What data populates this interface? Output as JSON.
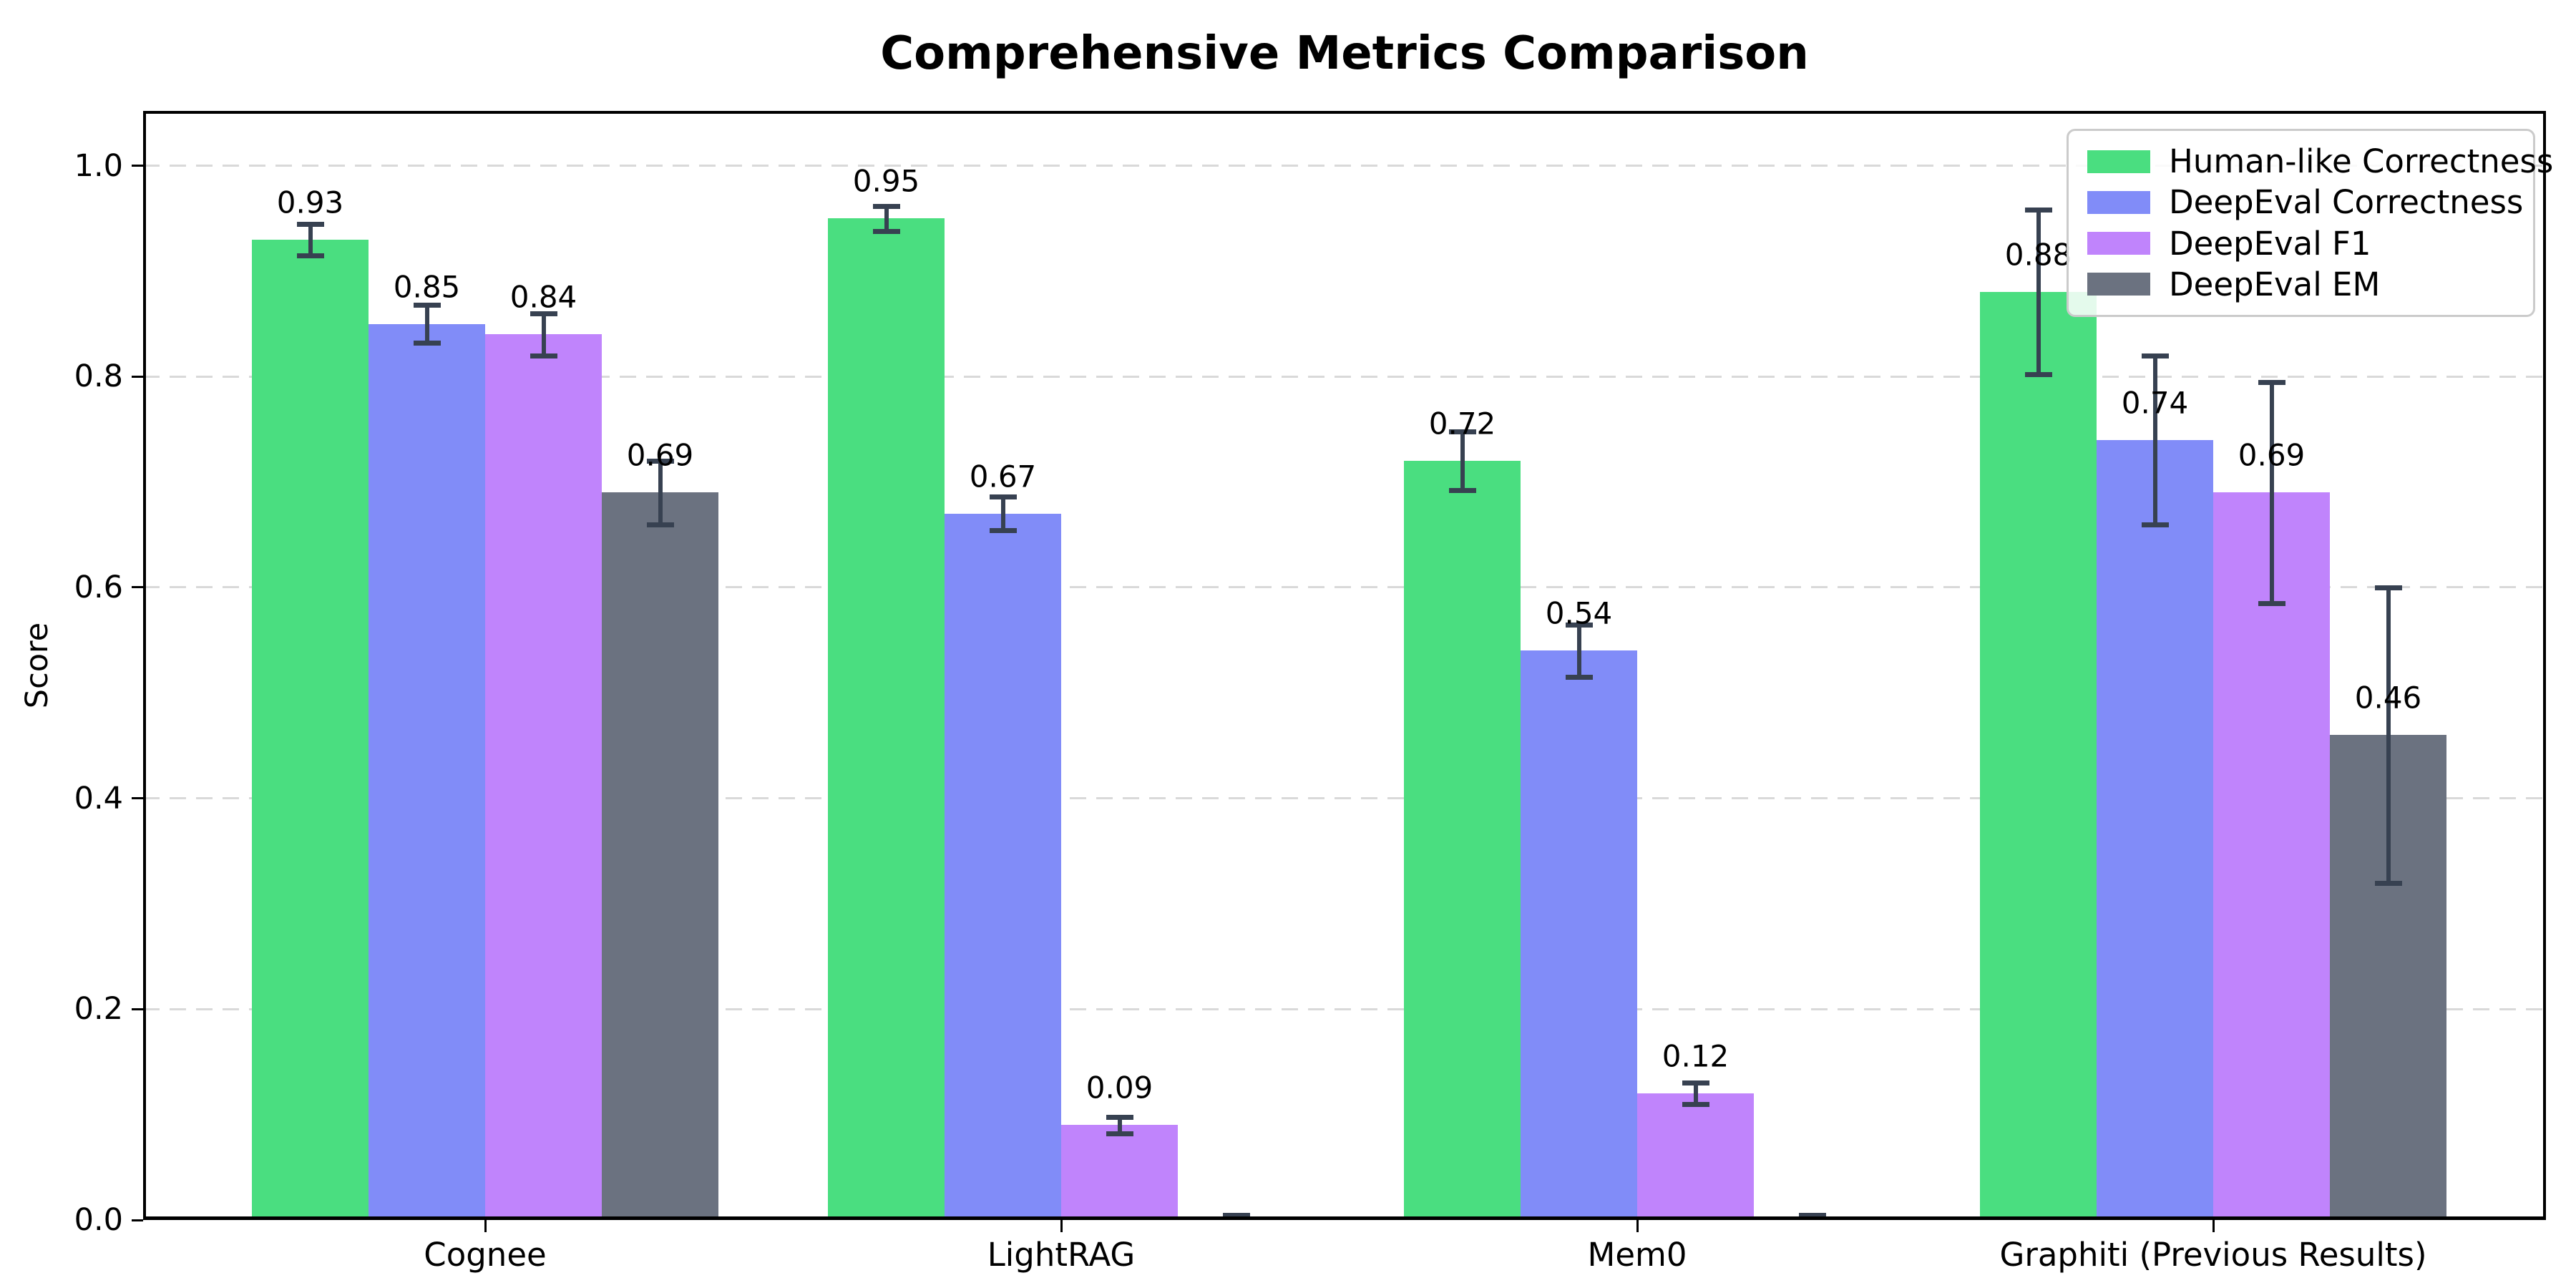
{
  "chart_data": {
    "type": "bar",
    "title": "Comprehensive Metrics Comparison",
    "xlabel": "",
    "ylabel": "Score",
    "categories": [
      "Cognee",
      "LightRAG",
      "Mem0",
      "Graphiti (Previous Results)"
    ],
    "series": [
      {
        "name": "Human-like Correctness",
        "color": "#4ade80",
        "values": [
          0.93,
          0.95,
          0.72,
          0.88
        ],
        "errors": [
          0.015,
          0.012,
          0.028,
          0.078
        ],
        "labels": [
          "0.93",
          "0.95",
          "0.72",
          "0.88"
        ]
      },
      {
        "name": "DeepEval Correctness",
        "color": "#818cf8",
        "values": [
          0.85,
          0.67,
          0.54,
          0.74
        ],
        "errors": [
          0.018,
          0.016,
          0.025,
          0.08
        ],
        "labels": [
          "0.85",
          "0.67",
          "0.54",
          "0.74"
        ]
      },
      {
        "name": "DeepEval F1",
        "color": "#c084fc",
        "values": [
          0.84,
          0.09,
          0.12,
          0.69
        ],
        "errors": [
          0.02,
          0.008,
          0.01,
          0.105
        ],
        "labels": [
          "0.84",
          "0.09",
          "0.12",
          "0.69"
        ]
      },
      {
        "name": "DeepEval EM",
        "color": "#6b7280",
        "values": [
          0.69,
          0.0,
          0.0,
          0.46
        ],
        "errors": [
          0.03,
          0.005,
          0.005,
          0.14
        ],
        "labels": [
          "0.69",
          "",
          "",
          "0.46"
        ]
      }
    ],
    "yticks": [
      {
        "value": 0.0,
        "label": "0.0"
      },
      {
        "value": 0.2,
        "label": "0.2"
      },
      {
        "value": 0.4,
        "label": "0.4"
      },
      {
        "value": 0.6,
        "label": "0.6"
      },
      {
        "value": 0.8,
        "label": "0.8"
      },
      {
        "value": 1.0,
        "label": "1.0"
      }
    ],
    "ylim": [
      0,
      1.052
    ],
    "grid": "horizontal-dashed",
    "legend_position": "upper right",
    "colors": {
      "error_bar": "#374151",
      "grid_line": "#d9d9d9",
      "axis": "#000000",
      "background": "#ffffff"
    }
  }
}
